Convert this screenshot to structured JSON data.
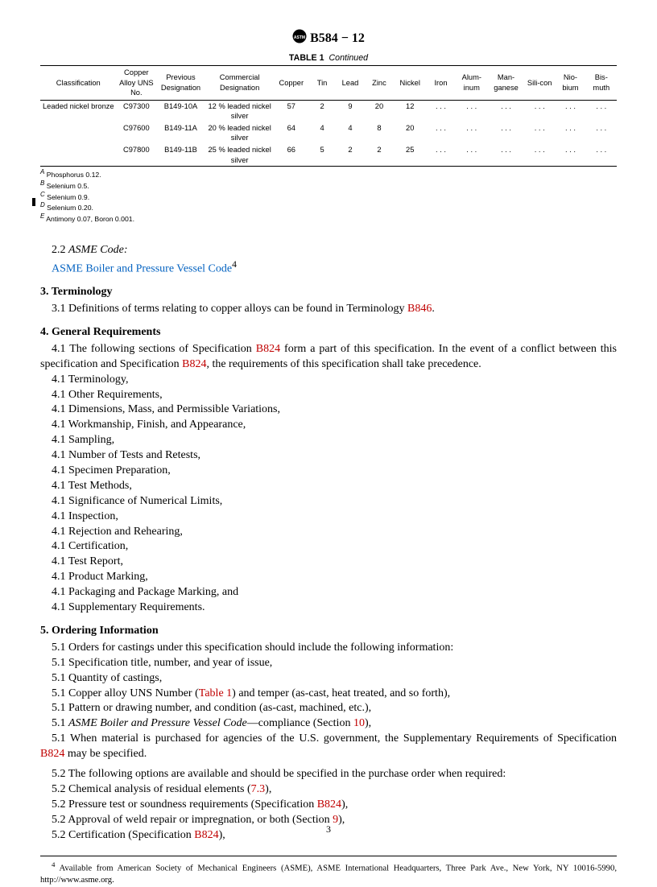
{
  "doc_id": "B584 − 12",
  "table": {
    "caption_label": "TABLE 1",
    "caption_cont": "Continued",
    "headers": [
      "Classification",
      "Copper Alloy UNS No.",
      "Previous Designation",
      "Commercial Designation",
      "Copper",
      "Tin",
      "Lead",
      "Zinc",
      "Nickel",
      "Iron",
      "Alum-inum",
      "Man-ganese",
      "Sili-con",
      "Nio-bium",
      "Bis-muth"
    ],
    "rows": [
      {
        "classification": "Leaded nickel bronze",
        "uns": "C97300",
        "prev": "B149-10A",
        "comm": "12 % leaded nickel silver",
        "cu": "57",
        "sn": "2",
        "pb": "9",
        "zn": "20",
        "ni": "12",
        "fe": ". . .",
        "al": ". . .",
        "mn": ". . .",
        "si": ". . .",
        "nb": ". . .",
        "bi": ". . ."
      },
      {
        "classification": "",
        "uns": "C97600",
        "prev": "B149-11A",
        "comm": "20 % leaded nickel silver",
        "cu": "64",
        "sn": "4",
        "pb": "4",
        "zn": "8",
        "ni": "20",
        "fe": ". . .",
        "al": ". . .",
        "mn": ". . .",
        "si": ". . .",
        "nb": ". . .",
        "bi": ". . ."
      },
      {
        "classification": "",
        "uns": "C97800",
        "prev": "B149-11B",
        "comm": "25 % leaded nickel silver",
        "cu": "66",
        "sn": "5",
        "pb": "2",
        "zn": "2",
        "ni": "25",
        "fe": ". . .",
        "al": ". . .",
        "mn": ". . .",
        "si": ". . .",
        "nb": ". . .",
        "bi": ". . ."
      }
    ],
    "footnotes": [
      {
        "sup": "A",
        "text": " Phosphorus 0.12."
      },
      {
        "sup": "B",
        "text": " Selenium 0.5."
      },
      {
        "sup": "C",
        "text": " Selenium 0.9."
      },
      {
        "sup": "D",
        "text": " Selenium 0.20."
      },
      {
        "sup": "E",
        "text": " Antimony 0.07, Boron 0.001."
      }
    ]
  },
  "s22_num": "2.2 ",
  "s22_title": "ASME Code:",
  "s22_link": "ASME Boiler and Pressure Vessel Code",
  "s22_fn": "4",
  "s3_heading": "3. Terminology",
  "s31_pre": "3.1 Definitions of terms relating to copper alloys can be found in Terminology ",
  "s31_link": "B846",
  "s31_post": ".",
  "s4_heading": "4. General Requirements",
  "s41_pre": "4.1 The following sections of Specification ",
  "s41_link1": "B824",
  "s41_mid": " form a part of this specification. In the event of a conflict between this specification and Specification ",
  "s41_link2": "B824",
  "s41_post": ", the requirements of this specification shall take precedence.",
  "s4_items": [
    "4.1 Terminology,",
    "4.1 Other Requirements,",
    "4.1 Dimensions, Mass, and Permissible Variations,",
    "4.1 Workmanship, Finish, and Appearance,",
    "4.1 Sampling,",
    "4.1 Number of Tests and Retests,",
    "4.1 Specimen Preparation,",
    "4.1 Test Methods,",
    "4.1 Significance of Numerical Limits,",
    "4.1 Inspection,",
    "4.1 Rejection and Rehearing,",
    "4.1 Certification,",
    "4.1 Test Report,",
    "4.1 Product Marking,",
    "4.1 Packaging and Package Marking, and",
    "4.1 Supplementary Requirements."
  ],
  "s5_heading": "5. Ordering Information",
  "s51_intro": "5.1 Orders for castings under this specification should include the following information:",
  "s51_items": [
    "5.1 Specification title, number, and year of issue,",
    "5.1 Quantity of castings,"
  ],
  "s51_uns_pre": "5.1 Copper alloy UNS Number (",
  "s51_uns_link": "Table 1",
  "s51_uns_post": ") and temper (as-cast, heat treated, and so forth),",
  "s51_pattern": "5.1 Pattern or drawing number, and condition (as-cast, machined, etc.),",
  "s51_asme_pre": "5.1 ",
  "s51_asme_ital": "ASME Boiler and Pressure Vessel Code",
  "s51_asme_mid": "—compliance (Section ",
  "s51_asme_link": "10",
  "s51_asme_post": "),",
  "s51_gov_pre": "5.1 When material is purchased for agencies of the U.S. government, the Supplementary Requirements of Specification ",
  "s51_gov_link": "B824",
  "s51_gov_post": " may be specified.",
  "s52_intro": "5.2 The following options are available and should be specified in the purchase order when required:",
  "s52_a_pre": "5.2 Chemical analysis of residual elements (",
  "s52_a_link": "7.3",
  "s52_a_post": "),",
  "s52_b_pre": "5.2 Pressure test or soundness requirements (Specification ",
  "s52_b_link": "B824",
  "s52_b_post": "),",
  "s52_c_pre": "5.2 Approval of weld repair or impregnation, or both (Section ",
  "s52_c_link": "9",
  "s52_c_post": "),",
  "s52_d_pre": "5.2 Certification (Specification ",
  "s52_d_link": "B824",
  "s52_d_post": "),",
  "footnote4_sup": "4",
  "footnote4": " Available from American Society of Mechanical Engineers (ASME), ASME International Headquarters, Three Park Ave., New York, NY 10016-5990, http://www.asme.org.",
  "page_num": "3"
}
